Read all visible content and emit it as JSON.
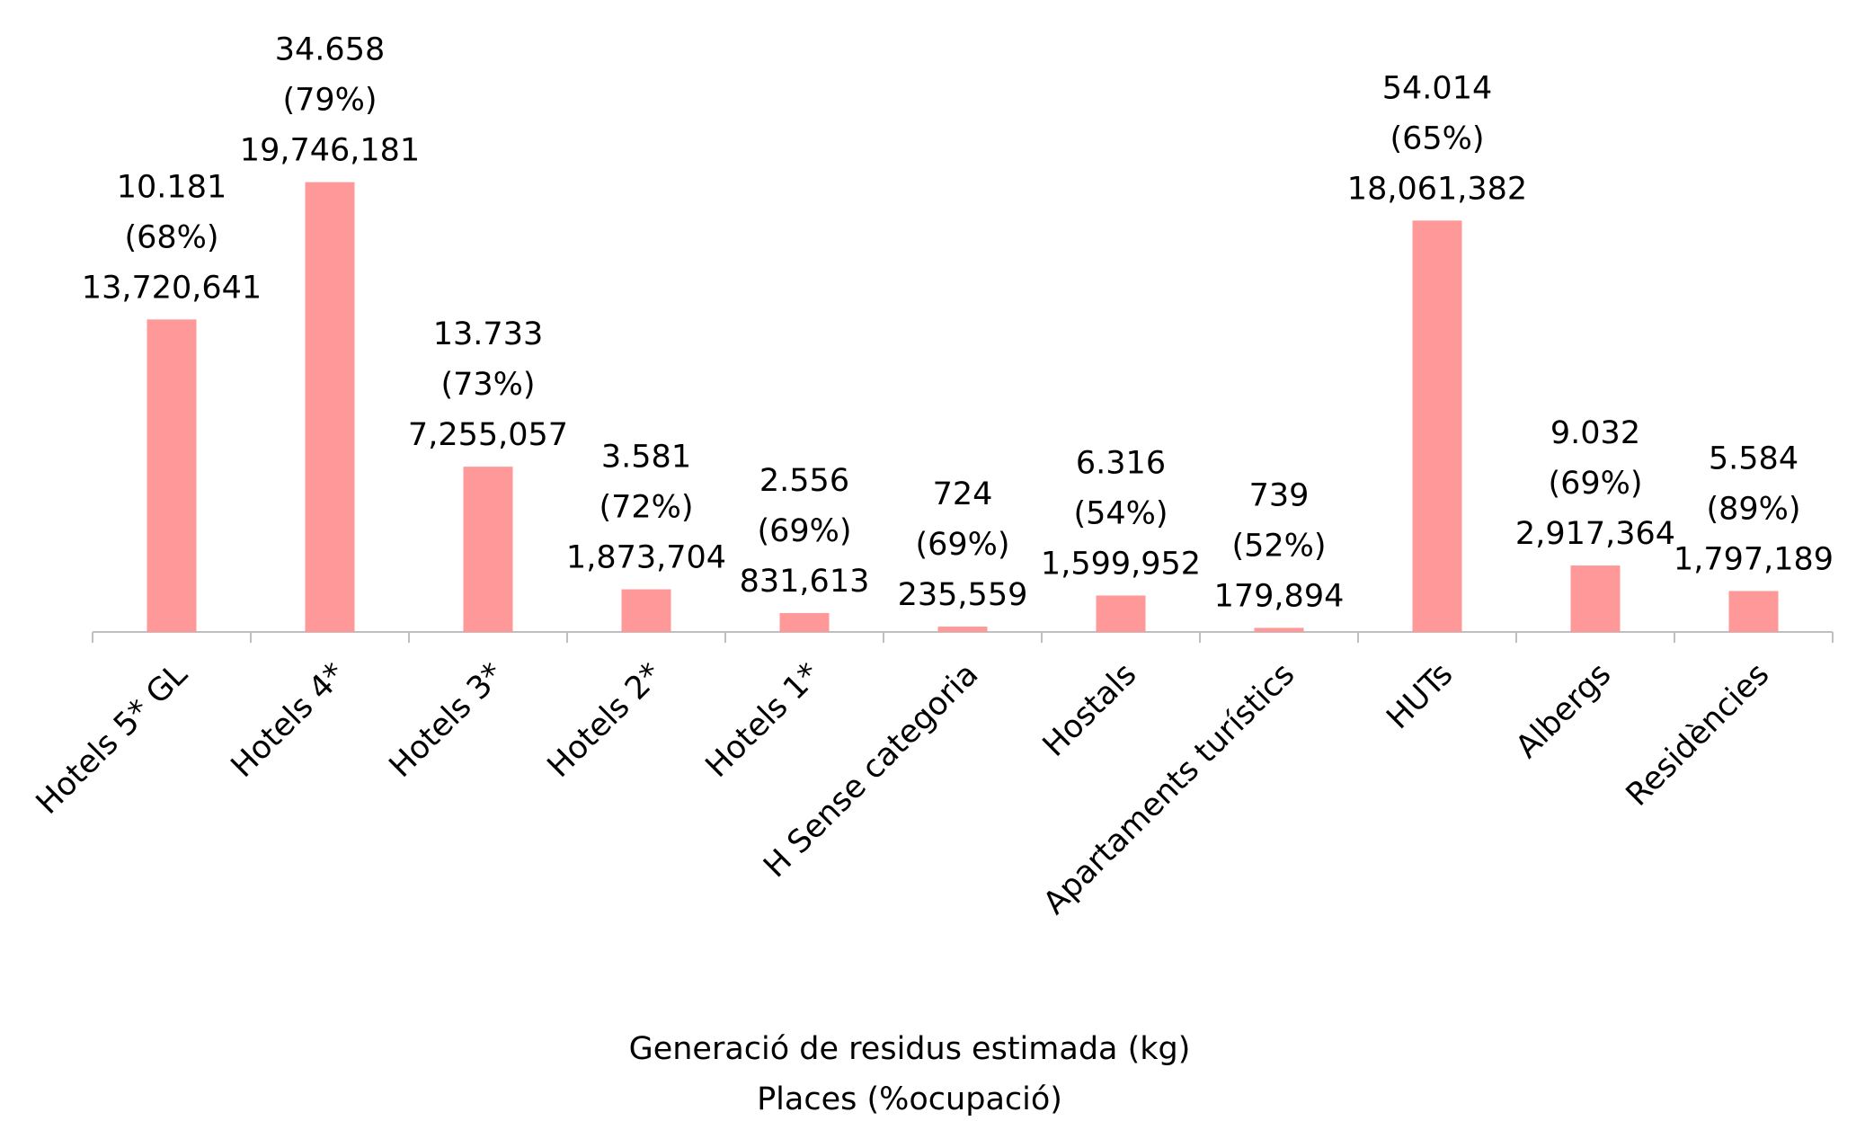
{
  "chart_data": {
    "type": "bar",
    "categories": [
      "Hotels 5* GL",
      "Hotels 4*",
      "Hotels 3*",
      "Hotels 2*",
      "Hotels 1*",
      "H Sense categoria",
      "Hostals",
      "Apartaments turístics",
      "HUTs",
      "Albergs",
      "Residències"
    ],
    "values": [
      13720641,
      19746181,
      7255057,
      1873704,
      831613,
      235559,
      1599952,
      179894,
      18061382,
      2917364,
      1797189
    ],
    "value_labels": [
      "13,720,641",
      "19,746,181",
      "7,255,057",
      "1,873,704",
      "831,613",
      "235,559",
      "1,599,952",
      "179,894",
      "18,061,382",
      "2,917,364",
      "1,797,189"
    ],
    "places": [
      10181,
      34658,
      13733,
      3581,
      2556,
      724,
      6316,
      739,
      54014,
      9032,
      5584
    ],
    "places_labels": [
      "10.181",
      "34.658",
      "13.733",
      "3.581",
      "2.556",
      "724",
      "6.316",
      "739",
      "54.014",
      "9.032",
      "5.584"
    ],
    "occupancy": [
      68,
      79,
      73,
      72,
      69,
      69,
      54,
      52,
      65,
      69,
      89
    ],
    "occupancy_labels": [
      "(68%)",
      "(79%)",
      "(73%)",
      "(72%)",
      "(69%)",
      "(69%)",
      "(54%)",
      "(52%)",
      "(65%)",
      "(69%)",
      "(89%)"
    ],
    "color": "#ff9999",
    "annotation_color": "#c00000",
    "ylim": [
      0,
      25000000
    ],
    "legend_labels": [
      "Generació de residus estimada (kg)",
      "Places (%ocupació)"
    ]
  }
}
